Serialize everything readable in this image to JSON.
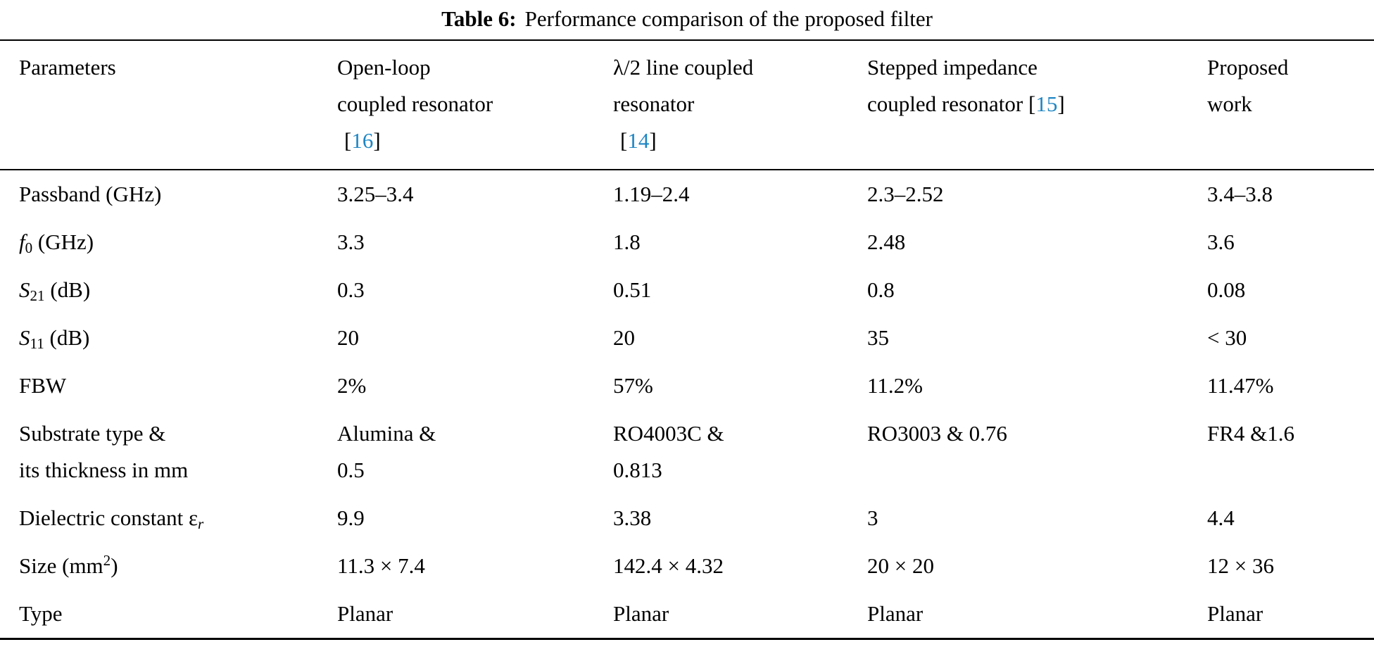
{
  "caption": {
    "label": "Table 6:",
    "text": "Performance comparison of the proposed filter"
  },
  "colors": {
    "citation": "#1f86c4",
    "text": "#000000",
    "rule": "#000000"
  },
  "header": {
    "parameters": "Parameters",
    "col2": {
      "line1": "Open-loop",
      "line2": "coupled resonator",
      "cite": {
        "open": "[",
        "num": "16",
        "close": "]"
      }
    },
    "col3": {
      "line1": "λ/2 line coupled",
      "line2": "resonator",
      "cite": {
        "open": "[",
        "num": "14",
        "close": "]"
      }
    },
    "col4": {
      "line1": "Stepped impedance",
      "line2": "coupled resonator",
      "cite": {
        "open": "[",
        "num": "15",
        "close": "]"
      }
    },
    "col5": {
      "line1": "Proposed",
      "line2": "work"
    }
  },
  "rows": [
    {
      "param": {
        "pre": "Passband (GHz)"
      },
      "values": [
        "3.25–3.4",
        "1.19–2.4",
        "2.3–2.52",
        "3.4–3.8"
      ]
    },
    {
      "param": {
        "italic": "f",
        "sub": "0",
        "post": " (GHz)"
      },
      "values": [
        "3.3",
        "1.8",
        "2.48",
        "3.6"
      ]
    },
    {
      "param": {
        "italic": "S",
        "sub": "21",
        "post": " (dB)"
      },
      "values": [
        "0.3",
        "0.51",
        "0.8",
        "0.08"
      ]
    },
    {
      "param": {
        "italic": "S",
        "sub": "11",
        "post": " (dB)"
      },
      "values": [
        "20",
        "20",
        "35",
        "< 30"
      ]
    },
    {
      "param": {
        "pre": "FBW"
      },
      "values": [
        "2%",
        "57%",
        "11.2%",
        "11.47%"
      ]
    },
    {
      "param": {
        "line1": "Substrate type &",
        "line2": "its thickness in mm"
      },
      "values": [
        {
          "line1": "Alumina &",
          "line2": "0.5"
        },
        {
          "line1": "RO4003C &",
          "line2": "0.813"
        },
        "RO3003 & 0.76",
        "FR4 &1.6"
      ]
    },
    {
      "param": {
        "pre": "Dielectric constant ε",
        "subItalic": "r"
      },
      "values": [
        "9.9",
        "3.38",
        "3",
        "4.4"
      ]
    },
    {
      "param": {
        "pre": "Size (mm",
        "sup": "2",
        "post": ")"
      },
      "values": [
        "11.3 × 7.4",
        "142.4 × 4.32",
        "20 × 20",
        "12 × 36"
      ]
    },
    {
      "param": {
        "pre": "Type"
      },
      "values": [
        "Planar",
        "Planar",
        "Planar",
        "Planar"
      ]
    }
  ]
}
